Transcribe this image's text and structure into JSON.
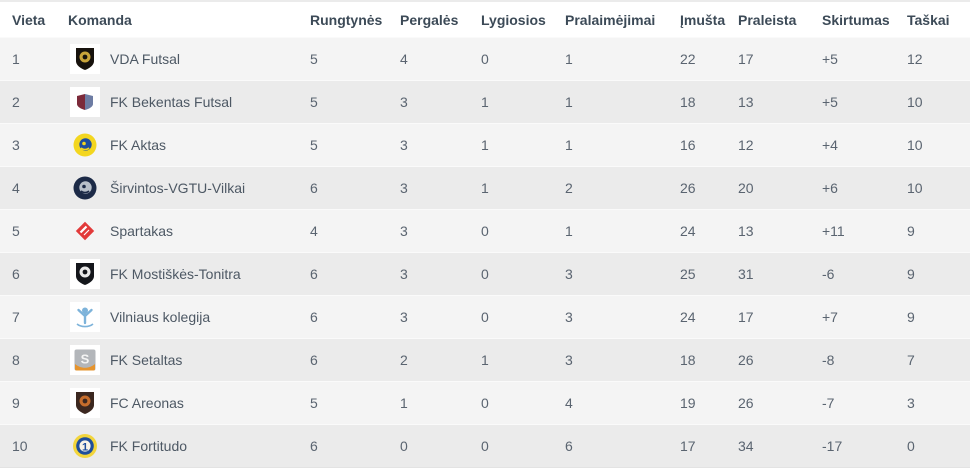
{
  "table": {
    "columns": [
      {
        "key": "vieta",
        "label": "Vieta"
      },
      {
        "key": "komanda",
        "label": "Komanda"
      },
      {
        "key": "rungtynes",
        "label": "Rungtynės"
      },
      {
        "key": "pergales",
        "label": "Pergalės"
      },
      {
        "key": "lygiosios",
        "label": "Lygiosios"
      },
      {
        "key": "pralaimejimai",
        "label": "Pralaimėjimai"
      },
      {
        "key": "imusta",
        "label": "Įmušta"
      },
      {
        "key": "praleista",
        "label": "Praleista"
      },
      {
        "key": "skirtumas",
        "label": "Skirtumas"
      },
      {
        "key": "taskai",
        "label": "Taškai"
      }
    ],
    "rows": [
      {
        "vieta": "1",
        "komanda": "VDA Futsal",
        "logo": {
          "icon": "vda-futsal-crest-icon",
          "type": "shield",
          "boxed": true,
          "bg": "#17120d",
          "inner": "#c9a43a"
        },
        "rungtynes": "5",
        "pergales": "4",
        "lygiosios": "0",
        "pralaimejimai": "1",
        "imusta": "22",
        "praleista": "17",
        "skirtumas": "+5",
        "taskai": "12"
      },
      {
        "vieta": "2",
        "komanda": "FK Bekentas Futsal",
        "logo": {
          "icon": "bekentas-crest-icon",
          "type": "shield-split",
          "boxed": true,
          "bg": "#7c2a3a",
          "inner": "#6d7ca3"
        },
        "rungtynes": "5",
        "pergales": "3",
        "lygiosios": "1",
        "pralaimejimai": "1",
        "imusta": "18",
        "praleista": "13",
        "skirtumas": "+5",
        "taskai": "10"
      },
      {
        "vieta": "3",
        "komanda": "FK Aktas",
        "logo": {
          "icon": "aktas-crest-icon",
          "type": "circle",
          "boxed": false,
          "bg": "#f3d61f",
          "inner": "#1e4e9c"
        },
        "rungtynes": "5",
        "pergales": "3",
        "lygiosios": "1",
        "pralaimejimai": "1",
        "imusta": "16",
        "praleista": "12",
        "skirtumas": "+4",
        "taskai": "10"
      },
      {
        "vieta": "4",
        "komanda": "Širvintos-VGTU-Vilkai",
        "logo": {
          "icon": "sirvintos-vilkai-crest-icon",
          "type": "circle",
          "boxed": false,
          "bg": "#1c2a47",
          "inner": "#b7bfc9"
        },
        "rungtynes": "6",
        "pergales": "3",
        "lygiosios": "1",
        "pralaimejimai": "2",
        "imusta": "26",
        "praleista": "20",
        "skirtumas": "+6",
        "taskai": "10"
      },
      {
        "vieta": "5",
        "komanda": "Spartakas",
        "logo": {
          "icon": "spartakas-crest-icon",
          "type": "diamond",
          "boxed": false,
          "bg": "#e23a3a",
          "inner": "#ffffff"
        },
        "rungtynes": "4",
        "pergales": "3",
        "lygiosios": "0",
        "pralaimejimai": "1",
        "imusta": "24",
        "praleista": "13",
        "skirtumas": "+11",
        "taskai": "9"
      },
      {
        "vieta": "6",
        "komanda": "FK Mostiškės-Tonitra",
        "logo": {
          "icon": "mostiskes-tonitra-crest-icon",
          "type": "shield",
          "boxed": true,
          "bg": "#14161b",
          "inner": "#e9e9e9"
        },
        "rungtynes": "6",
        "pergales": "3",
        "lygiosios": "0",
        "pralaimejimai": "3",
        "imusta": "25",
        "praleista": "31",
        "skirtumas": "-6",
        "taskai": "9"
      },
      {
        "vieta": "7",
        "komanda": "Vilniaus kolegija",
        "logo": {
          "icon": "vilniaus-kolegija-crest-icon",
          "type": "person",
          "boxed": true,
          "bg": "#7db3da",
          "inner": "#7db3da"
        },
        "rungtynes": "6",
        "pergales": "3",
        "lygiosios": "0",
        "pralaimejimai": "3",
        "imusta": "24",
        "praleista": "17",
        "skirtumas": "+7",
        "taskai": "9"
      },
      {
        "vieta": "8",
        "komanda": "FK Setaltas",
        "logo": {
          "icon": "setaltas-crest-icon",
          "type": "square",
          "boxed": true,
          "bg": "#b3b6ba",
          "inner": "#e6942e"
        },
        "rungtynes": "6",
        "pergales": "2",
        "lygiosios": "1",
        "pralaimejimai": "3",
        "imusta": "18",
        "praleista": "26",
        "skirtumas": "-8",
        "taskai": "7"
      },
      {
        "vieta": "9",
        "komanda": "FC Areonas",
        "logo": {
          "icon": "areonas-crest-icon",
          "type": "shield",
          "boxed": true,
          "bg": "#3c2820",
          "inner": "#c66d2c"
        },
        "rungtynes": "5",
        "pergales": "1",
        "lygiosios": "0",
        "pralaimejimai": "4",
        "imusta": "19",
        "praleista": "26",
        "skirtumas": "-7",
        "taskai": "3"
      },
      {
        "vieta": "10",
        "komanda": "FK Fortitudo",
        "logo": {
          "icon": "fortitudo-crest-icon",
          "type": "circle-ring",
          "boxed": false,
          "bg": "#f2d53c",
          "inner": "#1e4e9c"
        },
        "rungtynes": "6",
        "pergales": "0",
        "lygiosios": "0",
        "pralaimejimai": "6",
        "imusta": "17",
        "praleista": "34",
        "skirtumas": "-17",
        "taskai": "0"
      }
    ]
  },
  "colors": {
    "header_text": "#3c4a57",
    "cell_text": "#5a6470",
    "row_odd_bg": "#f4f4f4",
    "row_even_bg": "#ebebeb",
    "top_border": "#ebebeb"
  }
}
